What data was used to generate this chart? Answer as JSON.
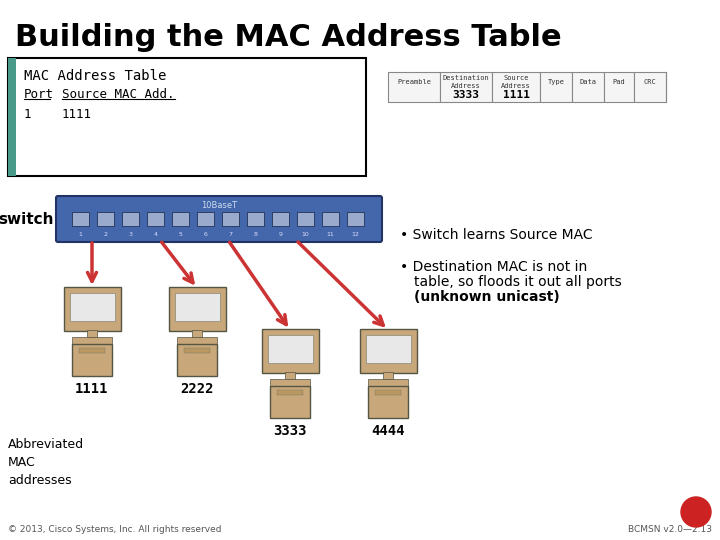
{
  "title": "Building the MAC Address Table",
  "title_fontsize": 22,
  "bg_color": "#ffffff",
  "table_header": "MAC Address Table",
  "table_col1": "Port",
  "table_col2": "Source MAC Add.",
  "table_row1_col1": "1",
  "table_row1_col2": "1111",
  "frame_header_fields": [
    "Preamble",
    "Destination\nAddress",
    "Source\nAddress",
    "Type",
    "Data",
    "Pad",
    "CRC"
  ],
  "frame_values": [
    "",
    "3333",
    "1111",
    "",
    "",
    "",
    ""
  ],
  "switch_label": "switch",
  "bullet1": "Switch learns Source MAC",
  "bullet2a": "Destination MAC is not in",
  "bullet2b": "table, so floods it out all ports",
  "bullet2c": "(unknown unicast)",
  "abbrev_label": "Abbreviated\nMAC\naddresses",
  "copyright": "© 2013, Cisco Systems, Inc. All rights reserved",
  "version": "BCMSN v2.0—2.13",
  "teal_color": "#4a9a8a",
  "switch_color": "#4466aa",
  "computer_body_color": "#c8a87a",
  "computer_screen_color": "#e8e8e8",
  "arrow_color": "#cc3333",
  "red_circle_color": "#cc2222",
  "frame_field_widths": [
    52,
    52,
    48,
    32,
    32,
    30,
    32
  ]
}
